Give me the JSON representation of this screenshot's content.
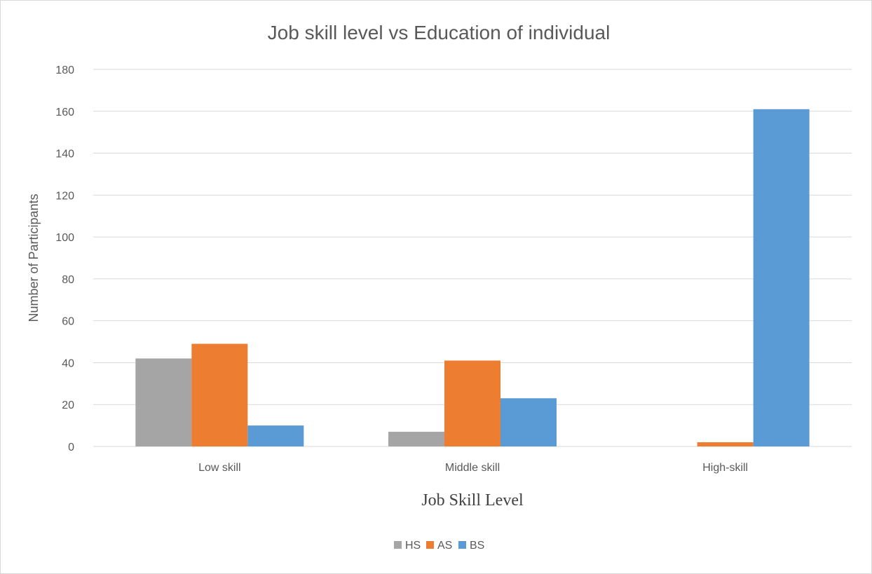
{
  "chart_data": {
    "type": "bar",
    "title": "Job skill level vs Education of individual",
    "xlabel": "Job Skill Level",
    "ylabel": "Number of Participants",
    "categories": [
      "Low skill",
      "Middle skill",
      "High-skill"
    ],
    "series": [
      {
        "name": "HS",
        "values": [
          42,
          7,
          0
        ],
        "color": "#a5a5a5"
      },
      {
        "name": "AS",
        "values": [
          49,
          41,
          2
        ],
        "color": "#ed7d31"
      },
      {
        "name": "BS",
        "values": [
          10,
          23,
          161
        ],
        "color": "#5b9bd5"
      }
    ],
    "ylim": [
      0,
      180
    ],
    "yticks": [
      0,
      20,
      40,
      60,
      80,
      100,
      120,
      140,
      160,
      180
    ],
    "grid": true,
    "legend": "bottom"
  }
}
